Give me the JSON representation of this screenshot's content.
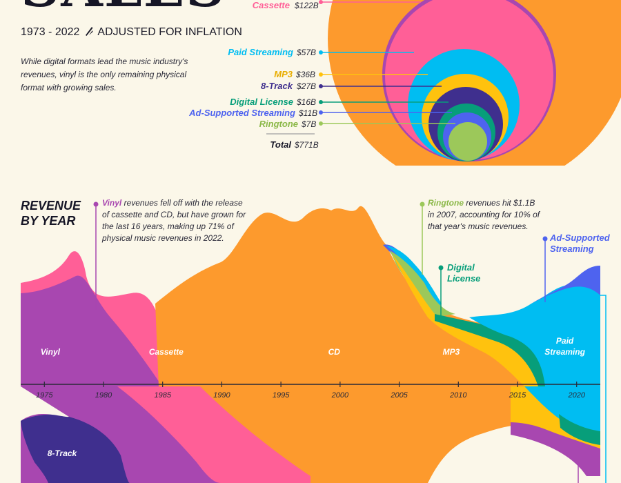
{
  "title": "SALES",
  "subtitle_years": "1973 - 2022",
  "subtitle_note": "ADJUSTED FOR INFLATION",
  "description": "While digital formats lead the music industry's revenues, vinyl is the only remaining physical format with growing sales.",
  "colors": {
    "vinyl": "#a847b0",
    "eight_track": "#3f2f8e",
    "cassette": "#ff5f97",
    "cd": "#fd9a2d",
    "mp3": "#ffc20e",
    "paid_streaming": "#00bdf2",
    "digital_license": "#079e7a",
    "ad_supported": "#4e63ef",
    "ringtone": "#9cc85a",
    "background": "#fbf7e9"
  },
  "totals": {
    "items": [
      {
        "label": "Cassette",
        "value": "$122B",
        "color": "#ff5f97"
      },
      {
        "label": "Paid Streaming",
        "value": "$57B",
        "color": "#00bdf2"
      },
      {
        "label": "MP3",
        "value": "$36B",
        "color": "#ffc20e"
      },
      {
        "label": "8-Track",
        "value": "$27B",
        "color": "#3f2f8e"
      },
      {
        "label": "Digital License",
        "value": "$16B",
        "color": "#079e7a"
      },
      {
        "label": "Ad-Supported Streaming",
        "value": "$11B",
        "color": "#4e63ef"
      },
      {
        "label": "Ringtone",
        "value": "$7B",
        "color": "#9cc85a"
      }
    ],
    "total_label": "Total",
    "total_value": "$771B"
  },
  "revenue_section": {
    "title_line1": "REVENUE",
    "title_line2": "BY YEAR"
  },
  "annotations": {
    "vinyl_name": "Vinyl",
    "vinyl_text": " revenues fell off with the release of cassette and CD, but have grown for the last 16 years, making up 71% of physical music revenues in 2022.",
    "ringtone_name": "Ringtone",
    "ringtone_text": " revenues hit $1.1B in 2007, accounting for 10% of that year's music revenues.",
    "digital_license_line1": "Digital",
    "digital_license_line2": "License",
    "ad_supported_line1": "Ad-Supported",
    "ad_supported_line2": "Streaming"
  },
  "chart_data": [
    {
      "type": "bubble",
      "title": "",
      "series": [
        {
          "name": "Cassette",
          "value_billion": 122
        },
        {
          "name": "Paid Streaming",
          "value_billion": 57
        },
        {
          "name": "MP3",
          "value_billion": 36
        },
        {
          "name": "8-Track",
          "value_billion": 27
        },
        {
          "name": "Digital License",
          "value_billion": 16
        },
        {
          "name": "Ad-Supported Streaming",
          "value_billion": 11
        },
        {
          "name": "Ringtone",
          "value_billion": 7
        }
      ],
      "total_billion": 771
    },
    {
      "type": "area",
      "title": "REVENUE BY YEAR",
      "x_ticks": [
        1975,
        1980,
        1985,
        1990,
        1995,
        2000,
        2005,
        2010,
        2015,
        2020
      ],
      "x_range": [
        1973,
        2022
      ],
      "series_labels": [
        {
          "name": "Vinyl",
          "year": 1975.5
        },
        {
          "name": "Cassette",
          "year": 1985.3
        },
        {
          "name": "CD",
          "year": 1999.5
        },
        {
          "name": "MP3",
          "year": 2009.4
        },
        {
          "name": "Paid Streaming",
          "year": 2019,
          "line1": "Paid",
          "line2": "Streaming"
        },
        {
          "name": "8-Track",
          "year": 1976.5
        }
      ],
      "grid": false,
      "legend": "none"
    }
  ]
}
